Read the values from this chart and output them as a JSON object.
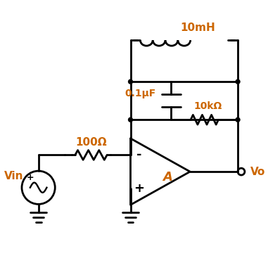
{
  "background_color": "#ffffff",
  "line_color": "#000000",
  "label_color": "#cc6600",
  "label_10mH": "10mH",
  "label_01uF": "0.1μF",
  "label_10kOhm": "10kΩ",
  "label_100Ohm": "100Ω",
  "label_Vin": "Vin",
  "label_Vo": "Vo",
  "label_A": "A",
  "label_plus": "+",
  "label_minus": "-"
}
